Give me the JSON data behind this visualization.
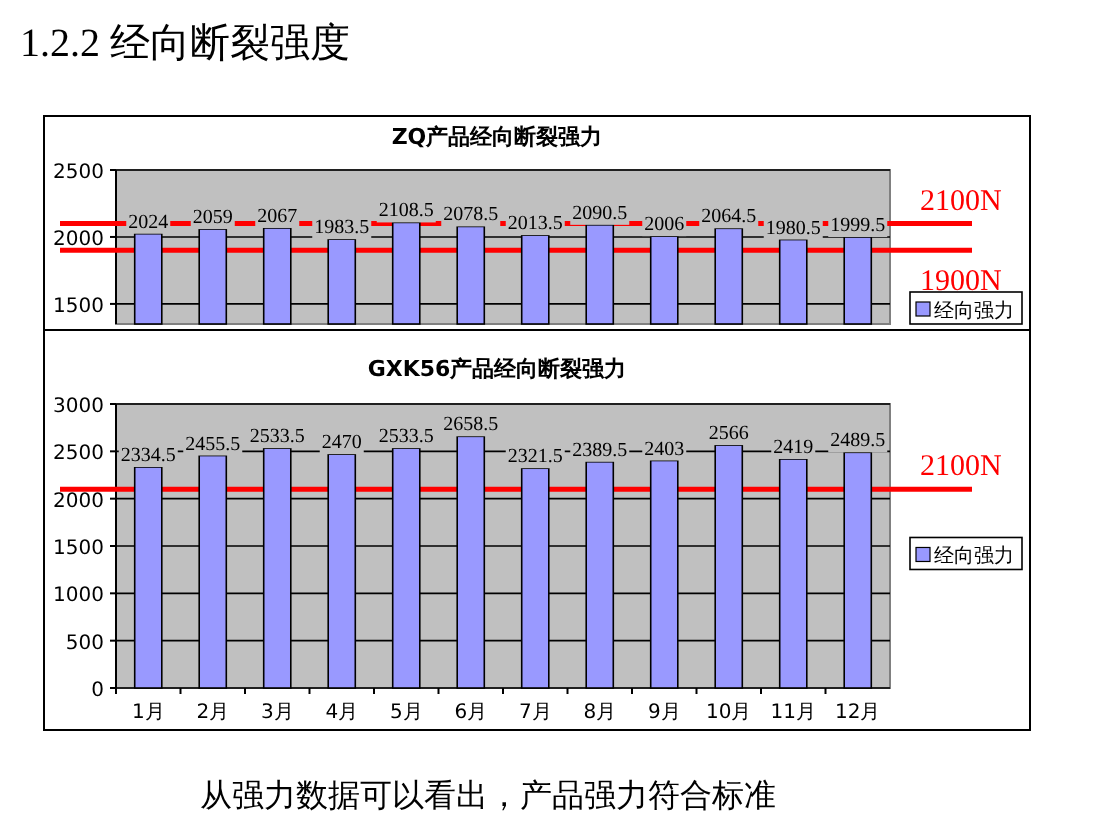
{
  "chart_data": [
    {
      "type": "bar",
      "title": "ZQ产品经向断裂强力",
      "annotations": [
        "1.2.2 经向断裂强度"
      ],
      "categories": [
        null,
        null,
        null,
        null,
        null,
        null,
        null,
        null,
        null,
        null,
        null,
        null
      ],
      "series": [
        {
          "name": "经向强力",
          "color": "#9999ff",
          "values": [
            2024,
            2059,
            2067,
            1983.5,
            2108.5,
            2078.5,
            2013.5,
            2090.5,
            2006,
            2064.5,
            1980.5,
            1999.5
          ]
        }
      ],
      "ylim": [
        1350,
        2500
      ],
      "yticks": [
        1500,
        2000,
        2500
      ],
      "grid": "y",
      "legend": "bottom right",
      "data_labels": true,
      "tick_labels": "y",
      "ref_lines": [
        {
          "axis": "y",
          "value": 2100,
          "label": "2100N",
          "color": "#ff0000"
        },
        {
          "axis": "y",
          "value": 1900,
          "label": "1900N",
          "color": "#ff0000"
        }
      ]
    },
    {
      "type": "bar",
      "title": "GXK56产品经向断裂强力",
      "annotations": [
        "从强力数据可以看出，产品强力符合标准"
      ],
      "categories": [
        "1月",
        "2月",
        "3月",
        "4月",
        "5月",
        "6月",
        "7月",
        "8月",
        "9月",
        "10月",
        "11月",
        "12月"
      ],
      "series": [
        {
          "name": "经向强力",
          "color": "#9999ff",
          "values": [
            2334.5,
            2455.5,
            2533.5,
            2470,
            2533.5,
            2658.5,
            2321.5,
            2389.5,
            2403,
            2566,
            2419,
            2489.5
          ]
        }
      ],
      "ylim": [
        0,
        3000
      ],
      "yticks": [
        0,
        500,
        1000,
        1500,
        2000,
        2500,
        3000
      ],
      "grid": "y",
      "legend": "right",
      "data_labels": true,
      "ref_lines": [
        {
          "axis": "y",
          "value": 2100,
          "label": "2100N",
          "color": "#ff0000"
        }
      ]
    }
  ]
}
